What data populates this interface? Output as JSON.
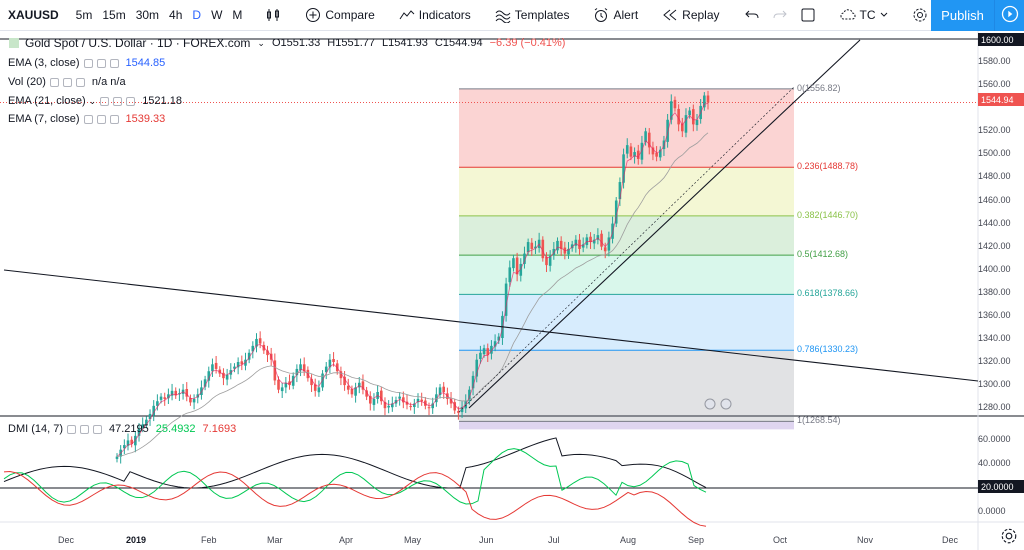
{
  "toolbar": {
    "symbol": "XAUUSD",
    "intervals": [
      "5m",
      "15m",
      "30m",
      "4h",
      "D",
      "W",
      "M"
    ],
    "active_interval": "D",
    "compare": "Compare",
    "indicators": "Indicators",
    "templates": "Templates",
    "alert": "Alert",
    "replay": "Replay",
    "tc": "TC",
    "publish": "Publish"
  },
  "legend": {
    "title": "Gold Spot / U.S. Dollar · 1D · FOREX.com",
    "open": "O1551.33",
    "high": "H1551.77",
    "low": "L1541.93",
    "close": "C1544.94",
    "change": "−6.39 (−0.41%)",
    "ema3_label": "EMA (3, close)",
    "ema3_value": "1544.85",
    "vol_label": "Vol (20)",
    "vol_value": "n/a  n/a",
    "ema21_label": "EMA (21, close)",
    "ema21_value": "1521.18",
    "ema7_label": "EMA (7, close)",
    "ema7_value": "1539.33",
    "dmi_label": "DMI (14, 7)",
    "dmi_adx": "47.2195",
    "dmi_plus": "25.4932",
    "dmi_minus": "7.1693"
  },
  "colors": {
    "bull": "#26a69a",
    "bear": "#ef5350",
    "accent": "#2196f3",
    "ema3": "#e91e63",
    "ema21": "#9e9e9e"
  },
  "chart_data": {
    "type": "candlestick",
    "price_axis": [
      "1600.00",
      "1580.00",
      "1560.00",
      "1544.94",
      "1520.00",
      "1500.00",
      "1480.00",
      "1460.00",
      "1440.00",
      "1420.00",
      "1400.00",
      "1380.00",
      "1360.00",
      "1340.00",
      "1320.00",
      "1300.00",
      "1280.00"
    ],
    "last_price": "1544.94",
    "top_price_tag": "1600.00",
    "fib_levels": [
      {
        "label": "0(1556.82)",
        "price": 1556.82,
        "color": "#787b86"
      },
      {
        "label": "0.236(1488.78)",
        "price": 1488.78,
        "color": "#e53935"
      },
      {
        "label": "0.382(1446.70)",
        "price": 1446.7,
        "color": "#8bc34a"
      },
      {
        "label": "0.5(1412.68)",
        "price": 1412.68,
        "color": "#43a047"
      },
      {
        "label": "0.618(1378.66)",
        "price": 1378.66,
        "color": "#26a69a"
      },
      {
        "label": "0.786(1330.23)",
        "price": 1330.23,
        "color": "#2196f3"
      },
      {
        "label": "1(1268.54)",
        "price": 1268.54,
        "color": "#787b86"
      }
    ],
    "dmi_axis": [
      "60.0000",
      "40.0000",
      "20.0000",
      "0.0000"
    ],
    "dmi_tag": "20.0000",
    "x_labels": [
      "Dec",
      "2019",
      "Feb",
      "Mar",
      "Apr",
      "May",
      "Jun",
      "Jul",
      "Aug",
      "Sep",
      "Oct",
      "Nov",
      "Dec"
    ],
    "closes": [
      1238,
      1244,
      1248,
      1252,
      1249,
      1256,
      1262,
      1266,
      1270,
      1275,
      1282,
      1286,
      1290,
      1288,
      1292,
      1295,
      1291,
      1293,
      1296,
      1290,
      1285,
      1288,
      1292,
      1298,
      1305,
      1312,
      1318,
      1314,
      1310,
      1306,
      1309,
      1313,
      1316,
      1320,
      1318,
      1322,
      1328,
      1334,
      1340,
      1336,
      1330,
      1326,
      1322,
      1304,
      1296,
      1298,
      1302,
      1300,
      1308,
      1314,
      1318,
      1312,
      1306,
      1300,
      1295,
      1298,
      1310,
      1316,
      1322,
      1320,
      1312,
      1306,
      1300,
      1296,
      1292,
      1298,
      1302,
      1296,
      1290,
      1284,
      1288,
      1294,
      1286,
      1280,
      1282,
      1284,
      1287,
      1290,
      1285,
      1283,
      1281,
      1284,
      1288,
      1286,
      1282,
      1280,
      1284,
      1292,
      1298,
      1294,
      1288,
      1284,
      1278,
      1276,
      1281,
      1286,
      1296,
      1308,
      1322,
      1328,
      1332,
      1326,
      1334,
      1338,
      1342,
      1360,
      1388,
      1402,
      1410,
      1396,
      1405,
      1414,
      1424,
      1418,
      1420,
      1426,
      1410,
      1404,
      1412,
      1418,
      1425,
      1418,
      1414,
      1418,
      1422,
      1426,
      1418,
      1422,
      1428,
      1424,
      1426,
      1430,
      1420,
      1416,
      1428,
      1440,
      1460,
      1476,
      1500,
      1508,
      1498,
      1502,
      1496,
      1510,
      1520,
      1506,
      1500,
      1498,
      1504,
      1512,
      1530,
      1546,
      1540,
      1526,
      1520,
      1534,
      1538,
      1526,
      1530,
      1542,
      1551,
      1544.94
    ]
  }
}
